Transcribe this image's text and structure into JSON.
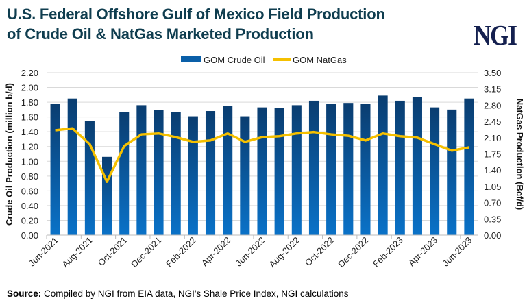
{
  "title_line1": "U.S. Federal Offshore Gulf of Mexico Field Production",
  "title_line2": "of Crude Oil & NatGas Marketed Production",
  "logo": "NGI",
  "source_label": "Source:",
  "source_text": " Compiled by NGI from EIA data, NGI's Shale Price Index, NGI calculations",
  "chart_data": {
    "type": "bar+line",
    "categories": [
      "Jun-2021",
      "Jul-2021",
      "Aug-2021",
      "Sep-2021",
      "Oct-2021",
      "Nov-2021",
      "Dec-2021",
      "Jan-2022",
      "Feb-2022",
      "Mar-2022",
      "Apr-2022",
      "May-2022",
      "Jun-2022",
      "Jul-2022",
      "Aug-2022",
      "Sep-2022",
      "Oct-2022",
      "Nov-2022",
      "Dec-2022",
      "Jan-2023",
      "Feb-2023",
      "Mar-2023",
      "Apr-2023",
      "May-2023",
      "Jun-2023"
    ],
    "tick_labels": [
      "Jun-2021",
      "Aug-2021",
      "Oct-2021",
      "Dec-2021",
      "Feb-2022",
      "Apr-2022",
      "Jun-2022",
      "Aug-2022",
      "Oct-2022",
      "Dec-2022",
      "Feb-2023",
      "Apr-2023",
      "Jun-2023"
    ],
    "series": [
      {
        "name": "GOM Crude Oil",
        "type": "bar",
        "axis": "left",
        "color": "#0a5fa8",
        "values": [
          1.78,
          1.85,
          1.55,
          1.06,
          1.67,
          1.76,
          1.69,
          1.67,
          1.61,
          1.68,
          1.75,
          1.61,
          1.73,
          1.72,
          1.76,
          1.82,
          1.78,
          1.79,
          1.78,
          1.89,
          1.82,
          1.87,
          1.73,
          1.7,
          1.85
        ]
      },
      {
        "name": "GOM NatGas",
        "type": "line",
        "axis": "right",
        "color": "#f5c000",
        "values": [
          2.26,
          2.3,
          1.96,
          1.15,
          1.92,
          2.17,
          2.19,
          2.11,
          2.01,
          2.04,
          2.19,
          2.01,
          2.11,
          2.13,
          2.19,
          2.22,
          2.17,
          2.14,
          2.04,
          2.19,
          2.13,
          2.1,
          1.96,
          1.82,
          1.89
        ]
      }
    ],
    "ylabel": "Crude Oil Production (million b/d)",
    "y2label": "NatGas Production (Bcf/d)",
    "ylim": [
      0,
      2.2
    ],
    "y2lim": [
      0,
      3.5
    ],
    "yticks": [
      "0.00",
      "0.20",
      "0.40",
      "0.60",
      "0.80",
      "1.00",
      "1.20",
      "1.40",
      "1.60",
      "1.80",
      "2.00",
      "2.20"
    ],
    "y2ticks": [
      "0.00",
      "0.35",
      "0.70",
      "1.05",
      "1.40",
      "1.75",
      "2.10",
      "2.45",
      "2.80",
      "3.15",
      "3.50"
    ],
    "grid": true,
    "legend": "top-center"
  }
}
